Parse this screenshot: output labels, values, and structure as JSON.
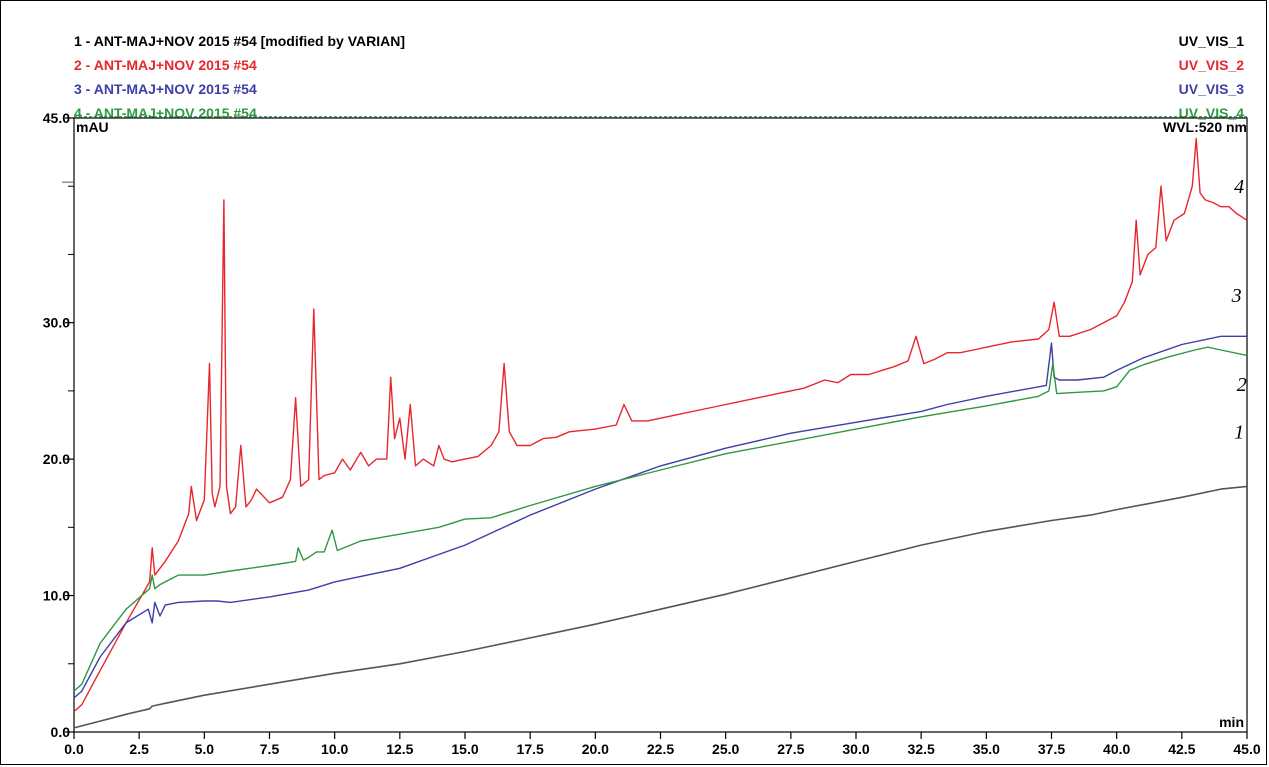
{
  "chart_data": {
    "type": "line",
    "xlim": [
      0,
      45
    ],
    "ylim": [
      0,
      45
    ],
    "x_ticks": [
      "0.0",
      "2.5",
      "5.0",
      "7.5",
      "10.0",
      "12.5",
      "15.0",
      "17.5",
      "20.0",
      "22.5",
      "25.0",
      "27.5",
      "30.0",
      "32.5",
      "35.0",
      "37.5",
      "40.0",
      "42.5",
      "45.0"
    ],
    "y_ticks": [
      "0.0",
      "10.0",
      "20.0",
      "30.0",
      "45.0"
    ],
    "ylabel": "mAU",
    "xlabel": "min",
    "wavelength": "WVL:520 nm",
    "legend_placement": "top",
    "series": [
      {
        "name": "1 - ANT-MAJ+NOV 2015 #54 [modified by VARIAN]",
        "channel": "UV_VIS_1",
        "color": "#555555",
        "x": [
          0,
          1,
          2,
          2.9,
          3,
          3.5,
          5,
          7.5,
          10,
          12.5,
          15,
          17.5,
          20,
          22.5,
          25,
          27.5,
          30,
          32.5,
          35,
          37.5,
          39,
          40,
          42.5,
          44,
          45
        ],
        "y": [
          0.3,
          0.8,
          1.3,
          1.7,
          1.9,
          2.1,
          2.7,
          3.5,
          4.3,
          5.0,
          5.9,
          6.9,
          7.9,
          9.0,
          10.1,
          11.3,
          12.5,
          13.7,
          14.7,
          15.5,
          15.9,
          16.3,
          17.2,
          17.8,
          18.0
        ]
      },
      {
        "name": "2 - ANT-MAJ+NOV 2015 #54",
        "channel": "UV_VIS_2",
        "color": "#e8262b",
        "x": [
          0,
          0.3,
          1,
          2,
          2.9,
          3.0,
          3.1,
          3.5,
          4.0,
          4.4,
          4.5,
          4.7,
          5.0,
          5.2,
          5.3,
          5.4,
          5.6,
          5.75,
          5.85,
          6.0,
          6.2,
          6.4,
          6.6,
          6.8,
          7.0,
          7.5,
          8.0,
          8.3,
          8.5,
          8.7,
          9.0,
          9.2,
          9.4,
          9.6,
          10.0,
          10.3,
          10.6,
          11.0,
          11.3,
          11.6,
          12.0,
          12.15,
          12.3,
          12.5,
          12.7,
          12.9,
          13.1,
          13.4,
          13.8,
          14.0,
          14.2,
          14.5,
          15.0,
          15.5,
          16.0,
          16.3,
          16.5,
          16.7,
          17.0,
          17.5,
          18.0,
          18.5,
          19.0,
          20.0,
          20.8,
          21.1,
          21.4,
          22.0,
          23.0,
          24.0,
          25.0,
          26.0,
          27.0,
          28.0,
          28.8,
          29.3,
          29.8,
          30.5,
          31.5,
          32.0,
          32.3,
          32.6,
          33.0,
          33.5,
          34.0,
          34.5,
          35.0,
          36.0,
          37.0,
          37.4,
          37.6,
          37.8,
          38.2,
          39.0,
          39.5,
          40.0,
          40.3,
          40.6,
          40.75,
          40.9,
          41.2,
          41.5,
          41.7,
          41.9,
          42.2,
          42.6,
          42.9,
          43.05,
          43.2,
          43.4,
          43.7,
          44.0,
          44.3,
          44.6,
          45.0
        ],
        "y": [
          1.5,
          2.0,
          4.5,
          8.0,
          11.0,
          13.5,
          11.5,
          12.5,
          14.0,
          16.0,
          18.0,
          15.5,
          17.0,
          27.0,
          17.5,
          16.5,
          18.0,
          39.0,
          18.0,
          16.0,
          16.5,
          21.0,
          16.5,
          17.0,
          17.8,
          16.8,
          17.2,
          18.5,
          24.5,
          18.0,
          18.5,
          31.0,
          18.5,
          18.8,
          19.0,
          20.0,
          19.2,
          20.5,
          19.5,
          20.0,
          20.0,
          26.0,
          21.5,
          23.0,
          20.0,
          24.0,
          19.5,
          20.0,
          19.5,
          21.0,
          20.0,
          19.8,
          20.0,
          20.2,
          21.0,
          22.0,
          27.0,
          22.0,
          21.0,
          21.0,
          21.5,
          21.6,
          22.0,
          22.2,
          22.5,
          24.0,
          22.8,
          22.8,
          23.2,
          23.6,
          24.0,
          24.4,
          24.8,
          25.2,
          25.8,
          25.6,
          26.2,
          26.2,
          26.8,
          27.2,
          29.0,
          27.0,
          27.3,
          27.8,
          27.8,
          28.0,
          28.2,
          28.6,
          28.8,
          29.5,
          31.5,
          29.0,
          29.0,
          29.5,
          30.0,
          30.5,
          31.5,
          33.0,
          37.5,
          33.5,
          35.0,
          35.5,
          40.0,
          36.0,
          37.5,
          38.0,
          40.0,
          43.5,
          39.5,
          39.0,
          38.8,
          38.5,
          38.5,
          38.0,
          37.5
        ]
      },
      {
        "name": "3 - ANT-MAJ+NOV 2015 #54",
        "channel": "UV_VIS_3",
        "color": "#3b3fa8",
        "x": [
          0,
          0.3,
          1,
          2,
          2.85,
          3.0,
          3.1,
          3.3,
          3.5,
          4.0,
          5.0,
          5.5,
          6.0,
          7.5,
          9.0,
          10.0,
          10.5,
          12.5,
          15.0,
          17.5,
          20.0,
          22.5,
          25.0,
          27.5,
          30.0,
          32.5,
          33.5,
          35.0,
          37.3,
          37.5,
          37.6,
          37.8,
          38.5,
          39.5,
          40.0,
          41.0,
          42.5,
          44.0,
          45.0
        ],
        "y": [
          2.5,
          3.0,
          5.5,
          8.0,
          9.0,
          8.0,
          9.5,
          8.5,
          9.3,
          9.5,
          9.6,
          9.6,
          9.5,
          9.9,
          10.4,
          11.0,
          11.2,
          12.0,
          13.7,
          15.9,
          17.8,
          19.5,
          20.8,
          21.9,
          22.7,
          23.5,
          24.0,
          24.6,
          25.4,
          28.5,
          26.0,
          25.8,
          25.8,
          26.0,
          26.5,
          27.4,
          28.4,
          29.0,
          29.0
        ]
      },
      {
        "name": "4 - ANT-MAJ+NOV 2015 #54",
        "channel": "UV_VIS_4",
        "color": "#2e9940",
        "x": [
          0,
          0.3,
          1,
          2,
          2.9,
          3.0,
          3.1,
          3.3,
          3.5,
          4.0,
          5.0,
          6.0,
          7.5,
          8.5,
          8.6,
          8.8,
          9.0,
          9.3,
          9.6,
          9.9,
          10.1,
          11.0,
          12.5,
          14.0,
          15.0,
          16.0,
          17.5,
          20.0,
          22.5,
          25.0,
          27.5,
          30.0,
          32.5,
          35.0,
          37.0,
          37.4,
          37.55,
          37.7,
          38.5,
          39.5,
          40.0,
          40.5,
          41.0,
          42.0,
          43.0,
          43.5,
          44.0,
          45.0
        ],
        "y": [
          3.0,
          3.5,
          6.5,
          9.0,
          10.5,
          11.5,
          10.5,
          10.8,
          11.0,
          11.5,
          11.5,
          11.8,
          12.2,
          12.5,
          13.5,
          12.6,
          12.8,
          13.2,
          13.2,
          14.8,
          13.3,
          14.0,
          14.5,
          15.0,
          15.6,
          15.7,
          16.6,
          18.0,
          19.2,
          20.4,
          21.3,
          22.2,
          23.1,
          23.9,
          24.6,
          25.0,
          27.0,
          24.8,
          24.9,
          25.0,
          25.3,
          26.5,
          26.9,
          27.5,
          28.0,
          28.2,
          28.0,
          27.6
        ]
      }
    ],
    "annotations": [
      {
        "label": "1",
        "x": 44.7,
        "y": 21.5
      },
      {
        "label": "2",
        "x": 44.8,
        "y": 25.0
      },
      {
        "label": "3",
        "x": 44.6,
        "y": 31.5
      },
      {
        "label": "4",
        "x": 44.7,
        "y": 39.5
      }
    ]
  }
}
